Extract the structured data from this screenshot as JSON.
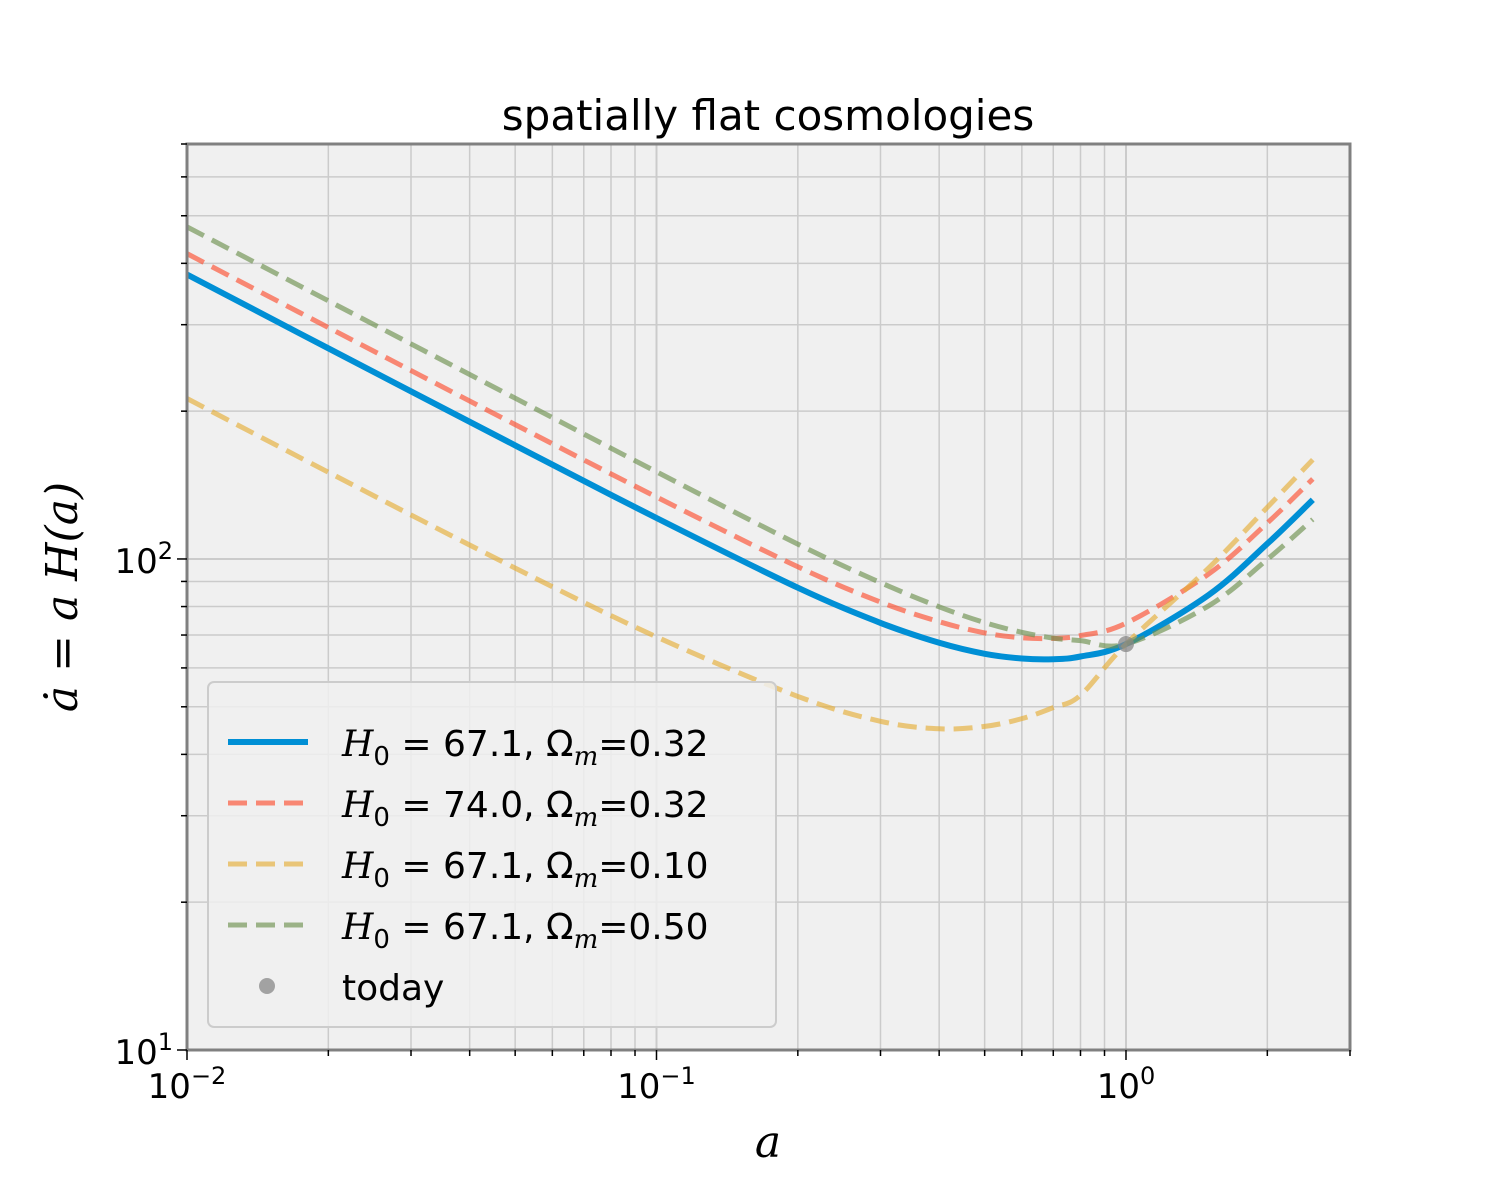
{
  "chart_data": {
    "type": "line",
    "title": "spatially flat cosmologies",
    "xlabel": "a",
    "ylabel": "ȧ = a H(a)",
    "xscale": "log",
    "yscale": "log",
    "xlim": [
      0.01,
      3
    ],
    "ylim": [
      10,
      700
    ],
    "xticks": [
      {
        "base": "10",
        "exp": "−2"
      },
      {
        "base": "10",
        "exp": "−1"
      },
      {
        "base": "10",
        "exp": "0"
      }
    ],
    "yticks": [
      {
        "base": "10",
        "exp": "1"
      },
      {
        "base": "10",
        "exp": "2"
      }
    ],
    "grid": true,
    "legend_position": "lower-left",
    "series": [
      {
        "name": "H_0 = 67.1, Ω_m = 0.32",
        "legend": {
          "pre": "H",
          "sub": "0",
          "mid": " = 67.1,  Ω",
          "sub2": "m",
          "post": "=0.32"
        },
        "color": "#008fd5",
        "style": "solid",
        "x": [
          0.01,
          0.02,
          0.05,
          0.1,
          0.2,
          0.3,
          0.4,
          0.5,
          0.6,
          0.7,
          0.8,
          1.0,
          1.5,
          2.0,
          2.5
        ],
        "y": [
          379.6,
          268.5,
          170.3,
          121.2,
          87.4,
          74.1,
          67.5,
          64.1,
          62.7,
          62.5,
          63.3,
          67.1,
          84.5,
          107.4,
          132.0
        ]
      },
      {
        "name": "H_0 = 74.0, Ω_m = 0.32",
        "legend": {
          "pre": "H",
          "sub": "0",
          "mid": " = 74.0,  Ω",
          "sub2": "m",
          "post": "=0.32"
        },
        "color": "#fc4f30",
        "style": "dashed",
        "x": [
          0.01,
          0.02,
          0.05,
          0.1,
          0.2,
          0.3,
          0.4,
          0.5,
          0.6,
          0.7,
          0.8,
          1.0,
          1.5,
          2.0,
          2.5
        ],
        "y": [
          418.6,
          296.1,
          187.8,
          133.7,
          96.4,
          81.7,
          74.5,
          70.7,
          69.1,
          68.9,
          69.8,
          74.0,
          93.2,
          118.4,
          145.6
        ]
      },
      {
        "name": "H_0 = 67.1, Ω_m = 0.10",
        "legend": {
          "pre": "H",
          "sub": "0",
          "mid": " = 67.1,  Ω",
          "sub2": "m",
          "post": "=0.10"
        },
        "color": "#e5ae38",
        "style": "dashed",
        "x": [
          0.01,
          0.02,
          0.05,
          0.1,
          0.2,
          0.3,
          0.4,
          0.5,
          0.6,
          0.7,
          0.8,
          1.0,
          1.5,
          2.0,
          2.5
        ],
        "y": [
          212.2,
          150.2,
          95.8,
          69.4,
          52.5,
          46.7,
          45.1,
          45.6,
          47.3,
          49.8,
          52.8,
          67.1,
          95.9,
          127.4,
          159.3
        ]
      },
      {
        "name": "H_0 = 67.1, Ω_m = 0.50",
        "legend": {
          "pre": "H",
          "sub": "0",
          "mid": " = 67.1,  Ω",
          "sub2": "m",
          "post": "=0.50"
        },
        "color": "#6d904f",
        "style": "dashed",
        "x": [
          0.01,
          0.02,
          0.05,
          0.1,
          0.2,
          0.3,
          0.4,
          0.5,
          0.6,
          0.7,
          0.8,
          1.0,
          1.5,
          2.0,
          2.5
        ],
        "y": [
          474.5,
          335.6,
          212.5,
          150.5,
          107.2,
          89.5,
          79.9,
          74.2,
          70.9,
          69.0,
          68.2,
          67.1,
          80.3,
          99.8,
          120.4
        ]
      }
    ],
    "markers": [
      {
        "name": "today",
        "x": 1.0,
        "y": 67.1,
        "color": "#888888"
      }
    ]
  },
  "colors": {
    "plot_background": "#f0f0f0",
    "grid": "#cbcbcb",
    "spine": "#808080",
    "legend_background": "#f0f0f0",
    "legend_border": "#cccccc"
  }
}
